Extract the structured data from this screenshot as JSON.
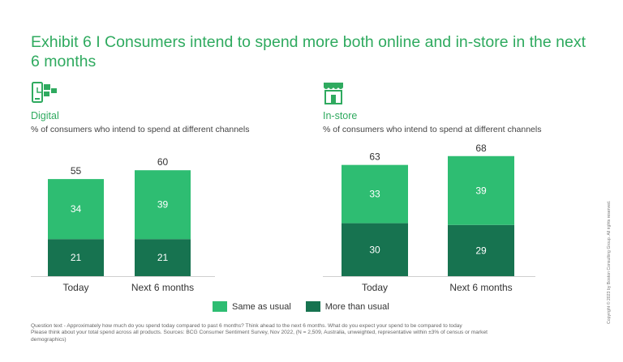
{
  "title": "Exhibit 6 I Consumers intend to spend more both online and in-store in the next 6 months",
  "colors": {
    "same": "#2ebd72",
    "more": "#177350",
    "accent": "#2faa5f"
  },
  "legend": {
    "same_label": "Same as usual",
    "more_label": "More than usual"
  },
  "footnote": {
    "line1": "Question text - Approximately how much do you spend today compared to past 6 months? Think ahead to the next 6 months. What do you expect your spend to be compared to today",
    "line2": "Please think about your total spend across all products. Sources: BCG Consumer Sentiment Survey, Nov 2022, (N = 2,509, Australia,  unweighted, representative within ±3% of census or market demographics)"
  },
  "copyright": "Copyright © 2023 by Boston Consulting Group. All rights reserved.",
  "chart_data": [
    {
      "type": "bar",
      "stacked": true,
      "title": "Digital",
      "subtitle": "% of consumers who intend to spend at different channels",
      "icon": "digital-devices-icon",
      "categories": [
        "Today",
        "Next 6 months"
      ],
      "series": [
        {
          "name": "More than usual",
          "values": [
            21,
            21
          ]
        },
        {
          "name": "Same as usual",
          "values": [
            34,
            39
          ]
        }
      ],
      "totals": [
        "55",
        "60"
      ],
      "ylim": [
        0,
        68
      ]
    },
    {
      "type": "bar",
      "stacked": true,
      "title": "In-store",
      "subtitle": "% of consumers who intend to spend at different channels",
      "icon": "storefront-icon",
      "categories": [
        "Today",
        "Next 6 months"
      ],
      "series": [
        {
          "name": "More than usual",
          "values": [
            30,
            29
          ]
        },
        {
          "name": "Same as usual",
          "values": [
            33,
            39
          ]
        }
      ],
      "totals": [
        "63",
        "68"
      ],
      "ylim": [
        0,
        68
      ]
    }
  ]
}
